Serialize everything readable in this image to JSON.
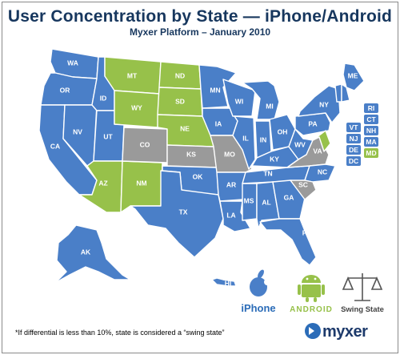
{
  "header": {
    "title": "User Concentration by State — iPhone/Android",
    "subtitle": "Myxer Platform – January 2010"
  },
  "colors": {
    "iphone": "#4a7fc8",
    "android": "#97c14a",
    "swing": "#9a9a9a",
    "border": "#ffffff"
  },
  "legend": {
    "iphone_label": "iPhone",
    "android_label": "ANDROID",
    "swing_label": "Swing State"
  },
  "footnote": "*If differential is less than 10%, state is considered a “swing state”",
  "brand": "myxer",
  "states": {
    "WA": "iphone",
    "OR": "iphone",
    "CA": "iphone",
    "NV": "iphone",
    "ID": "iphone",
    "UT": "iphone",
    "AZ": "android",
    "MT": "android",
    "WY": "android",
    "ND": "android",
    "SD": "android",
    "NE": "android",
    "NM": "android",
    "CO": "swing",
    "KS": "swing",
    "MO": "swing",
    "VA": "swing",
    "SC": "swing",
    "OK": "iphone",
    "TX": "iphone",
    "MN": "iphone",
    "IA": "iphone",
    "AR": "iphone",
    "LA": "iphone",
    "WI": "iphone",
    "IL": "iphone",
    "MS": "iphone",
    "MI": "iphone",
    "IN": "iphone",
    "KY": "iphone",
    "TN": "iphone",
    "AL": "iphone",
    "OH": "iphone",
    "GA": "iphone",
    "FL": "iphone",
    "WV": "iphone",
    "PA": "iphone",
    "NY": "iphone",
    "NC": "iphone",
    "ME": "iphone",
    "AK": "iphone",
    "HI": "iphone",
    "RI": "iphone",
    "CT": "iphone",
    "VT": "iphone",
    "NH": "iphone",
    "NJ": "iphone",
    "MA": "iphone",
    "DE": "iphone",
    "DC": "iphone",
    "MD": "android"
  }
}
